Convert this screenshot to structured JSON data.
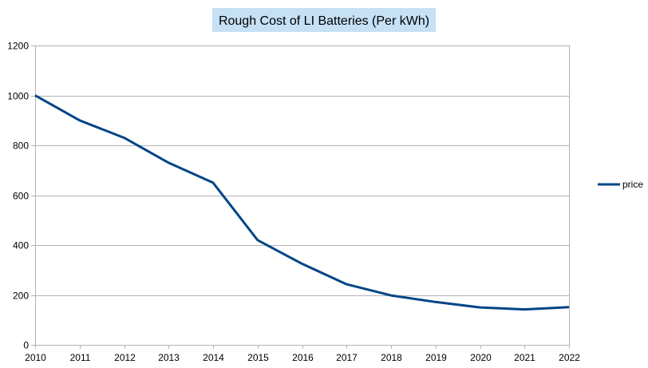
{
  "chart_data": {
    "type": "line",
    "title": "Rough Cost of LI Batteries (Per kWh)",
    "title_background": "#c6e0f5",
    "x": [
      "2010",
      "2011",
      "2012",
      "2013",
      "2014",
      "2015",
      "2016",
      "2017",
      "2018",
      "2019",
      "2020",
      "2021",
      "2022"
    ],
    "series": [
      {
        "name": "price",
        "color": "#004586",
        "values": [
          1000,
          900,
          830,
          730,
          650,
          420,
          325,
          243,
          198,
          172,
          150,
          142,
          151
        ]
      }
    ],
    "xlabel": "",
    "ylabel": "",
    "ylim": [
      0,
      1200
    ],
    "y_ticks": [
      0,
      200,
      400,
      600,
      800,
      1000,
      1200
    ],
    "grid": true,
    "legend_position": "right"
  }
}
